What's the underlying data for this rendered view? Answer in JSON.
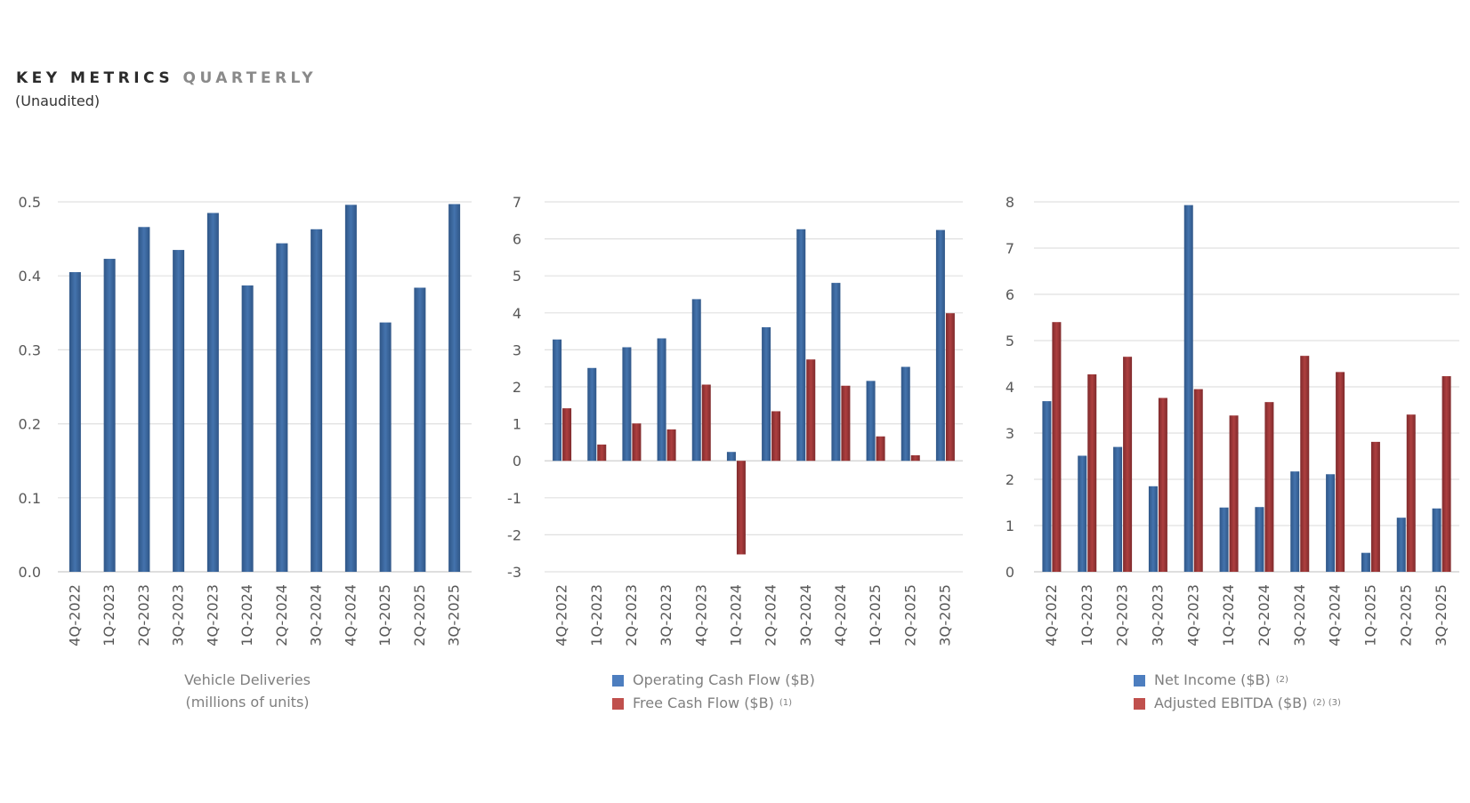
{
  "header": {
    "title_main": "KEY METRICS",
    "title_accent": "QUARTERLY",
    "subtitle": "(Unaudited)"
  },
  "colors": {
    "blue": "#3f6fa8",
    "red": "#a83a3a",
    "grid": "#e3e3e3"
  },
  "chart_data": [
    {
      "type": "bar",
      "title": "Vehicle Deliveries",
      "caption": [
        "Vehicle Deliveries",
        "(millions of units)"
      ],
      "xlabel": "",
      "ylabel": "",
      "categories": [
        "4Q-2022",
        "1Q-2023",
        "2Q-2023",
        "3Q-2023",
        "4Q-2023",
        "1Q-2024",
        "2Q-2024",
        "3Q-2024",
        "4Q-2024",
        "1Q-2025",
        "2Q-2025",
        "3Q-2025"
      ],
      "series": [
        {
          "name": "Vehicle Deliveries (millions of units)",
          "color": "#3f6fa8",
          "values": [
            0.405,
            0.423,
            0.466,
            0.435,
            0.485,
            0.387,
            0.444,
            0.463,
            0.496,
            0.337,
            0.384,
            0.497
          ]
        }
      ],
      "ylim": [
        0,
        0.5
      ],
      "yticks": [
        "0.0",
        "0.1",
        "0.2",
        "0.3",
        "0.4",
        "0.5"
      ],
      "ytick_values": [
        0,
        0.1,
        0.2,
        0.3,
        0.4,
        0.5
      ],
      "grid": true,
      "legend": "none"
    },
    {
      "type": "bar",
      "title": "Cash Flow",
      "categories": [
        "4Q-2022",
        "1Q-2023",
        "2Q-2023",
        "3Q-2023",
        "4Q-2023",
        "1Q-2024",
        "2Q-2024",
        "3Q-2024",
        "4Q-2024",
        "1Q-2025",
        "2Q-2025",
        "3Q-2025"
      ],
      "series": [
        {
          "name": "Operating Cash Flow ($B)",
          "footnote": "",
          "color": "#3f6fa8",
          "values": [
            3.28,
            2.51,
            3.07,
            3.31,
            4.37,
            0.24,
            3.61,
            6.26,
            4.81,
            2.16,
            2.54,
            6.24
          ]
        },
        {
          "name": "Free Cash Flow ($B)",
          "footnote": "(1)",
          "color": "#a83a3a",
          "values": [
            1.42,
            0.44,
            1.01,
            0.85,
            2.06,
            -2.53,
            1.34,
            2.74,
            2.03,
            0.66,
            0.15,
            3.99
          ]
        }
      ],
      "ylim": [
        -3,
        7
      ],
      "yticks": [
        "-3",
        "-2",
        "-1",
        "0",
        "1",
        "2",
        "3",
        "4",
        "5",
        "6",
        "7"
      ],
      "ytick_values": [
        -3,
        -2,
        -1,
        0,
        1,
        2,
        3,
        4,
        5,
        6,
        7
      ],
      "grid": true,
      "legend": "bottom"
    },
    {
      "type": "bar",
      "title": "Profitability",
      "categories": [
        "4Q-2022",
        "1Q-2023",
        "2Q-2023",
        "3Q-2023",
        "4Q-2023",
        "1Q-2024",
        "2Q-2024",
        "3Q-2024",
        "4Q-2024",
        "1Q-2025",
        "2Q-2025",
        "3Q-2025"
      ],
      "series": [
        {
          "name": "Net Income ($B)",
          "footnote": "(2)",
          "color": "#3f6fa8",
          "values": [
            3.69,
            2.51,
            2.7,
            1.85,
            7.93,
            1.39,
            1.4,
            2.17,
            2.11,
            0.41,
            1.17,
            1.37
          ]
        },
        {
          "name": "Adjusted EBITDA ($B)",
          "footnote": "(2) (3)",
          "color": "#a83a3a",
          "values": [
            5.4,
            4.27,
            4.65,
            3.76,
            3.95,
            3.38,
            3.67,
            4.67,
            4.32,
            2.81,
            3.4,
            4.23
          ]
        }
      ],
      "ylim": [
        0,
        8
      ],
      "yticks": [
        "0",
        "1",
        "2",
        "3",
        "4",
        "5",
        "6",
        "7",
        "8"
      ],
      "ytick_values": [
        0,
        1,
        2,
        3,
        4,
        5,
        6,
        7,
        8
      ],
      "grid": true,
      "legend": "bottom"
    }
  ]
}
